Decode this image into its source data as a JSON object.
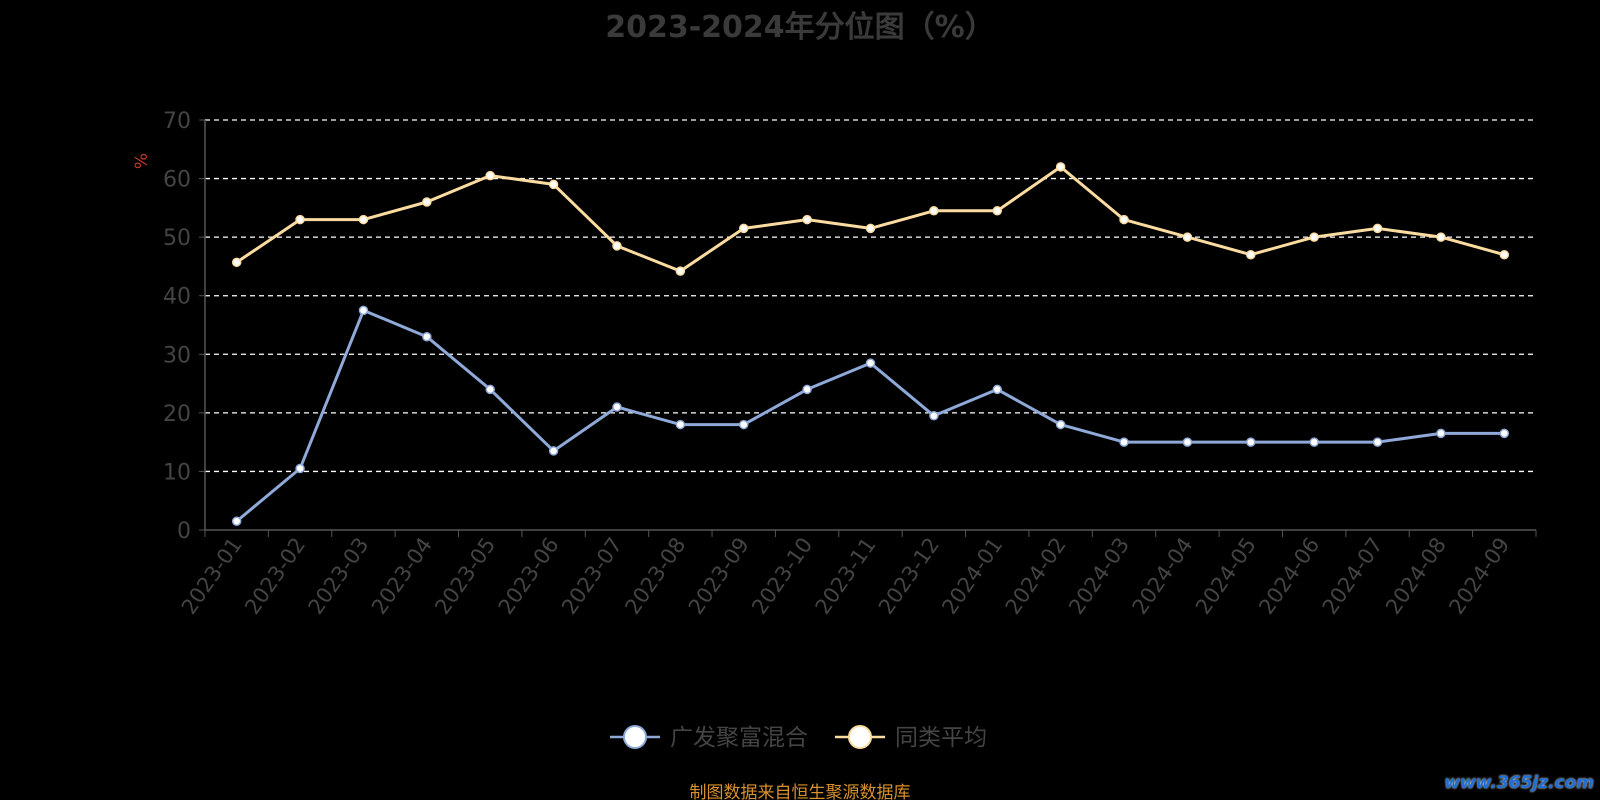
{
  "chart_data": {
    "type": "line",
    "title": "2023-2024年分位图（%）",
    "ylabel": "%",
    "xlabel": "",
    "ylim": [
      0,
      70
    ],
    "yticks": [
      0,
      10,
      20,
      30,
      40,
      50,
      60,
      70
    ],
    "grid": true,
    "legend_position": "bottom-center",
    "categories": [
      "2023-01",
      "2023-02",
      "2023-03",
      "2023-04",
      "2023-05",
      "2023-06",
      "2023-07",
      "2023-08",
      "2023-09",
      "2023-10",
      "2023-11",
      "2023-12",
      "2024-01",
      "2024-02",
      "2024-03",
      "2024-04",
      "2024-05",
      "2024-06",
      "2024-07",
      "2024-08",
      "2024-09"
    ],
    "series": [
      {
        "name": "广发聚富混合",
        "color": "#8fa9d8",
        "values": [
          1.5,
          10.5,
          37.5,
          33,
          24,
          13.5,
          21,
          18,
          18,
          24,
          28.5,
          19.5,
          24,
          18,
          15,
          15,
          15,
          15,
          15,
          16.5,
          16.5
        ]
      },
      {
        "name": "同类平均",
        "color": "#fbdca0",
        "values": [
          45.7,
          53,
          53,
          56,
          60.5,
          59,
          48.5,
          44.2,
          51.5,
          53,
          51.5,
          54.5,
          54.5,
          62,
          53,
          50,
          47,
          50,
          51.5,
          50,
          47
        ]
      }
    ]
  },
  "colors": {
    "background": "#000000",
    "axis": "#555555",
    "grid": "#ffffff",
    "tick_label": "#444444",
    "ylabel": "#c0392b",
    "legend_text": "#444444",
    "source": "#d8912c",
    "watermark": "#1f6fd6"
  },
  "footer": {
    "source": "制图数据来自恒生聚源数据库",
    "watermark": "www.365jz.com"
  }
}
